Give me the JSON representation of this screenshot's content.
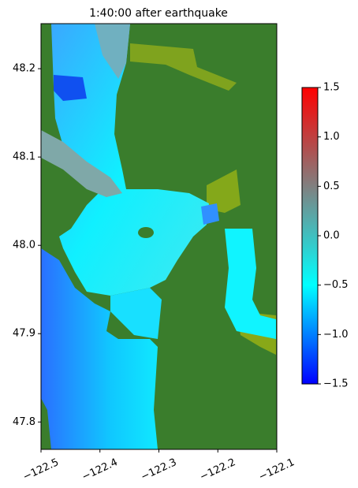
{
  "chart_data": {
    "type": "heatmap",
    "title": "1:40:00 after earthquake",
    "xlim": [
      -122.5,
      -122.1
    ],
    "xticks": [
      {
        "value": -122.5,
        "label": "−122.5"
      },
      {
        "value": -122.4,
        "label": "−122.4"
      },
      {
        "value": -122.3,
        "label": "−122.3"
      },
      {
        "value": -122.2,
        "label": "−122.2"
      },
      {
        "value": -122.1,
        "label": "−122.1"
      }
    ],
    "ylim": [
      47.769,
      48.251
    ],
    "yticks": [
      47.8,
      47.9,
      {
        "value": 48.0,
        "label": "48.0"
      },
      48.1,
      48.2
    ],
    "clim": [
      -1.5,
      1.5
    ],
    "cticks": [
      {
        "value": -1.5,
        "label": "−1.5"
      },
      {
        "value": -1.0,
        "label": "−1.0"
      },
      {
        "value": -0.5,
        "label": "−0.5"
      },
      {
        "value": 0,
        "label": "0.0"
      },
      0.5,
      {
        "value": 1.0,
        "label": "1.0"
      },
      1.5
    ],
    "colormap": [
      "#0000ff",
      "#00ffff",
      "#808080",
      "#ff0000"
    ]
  }
}
